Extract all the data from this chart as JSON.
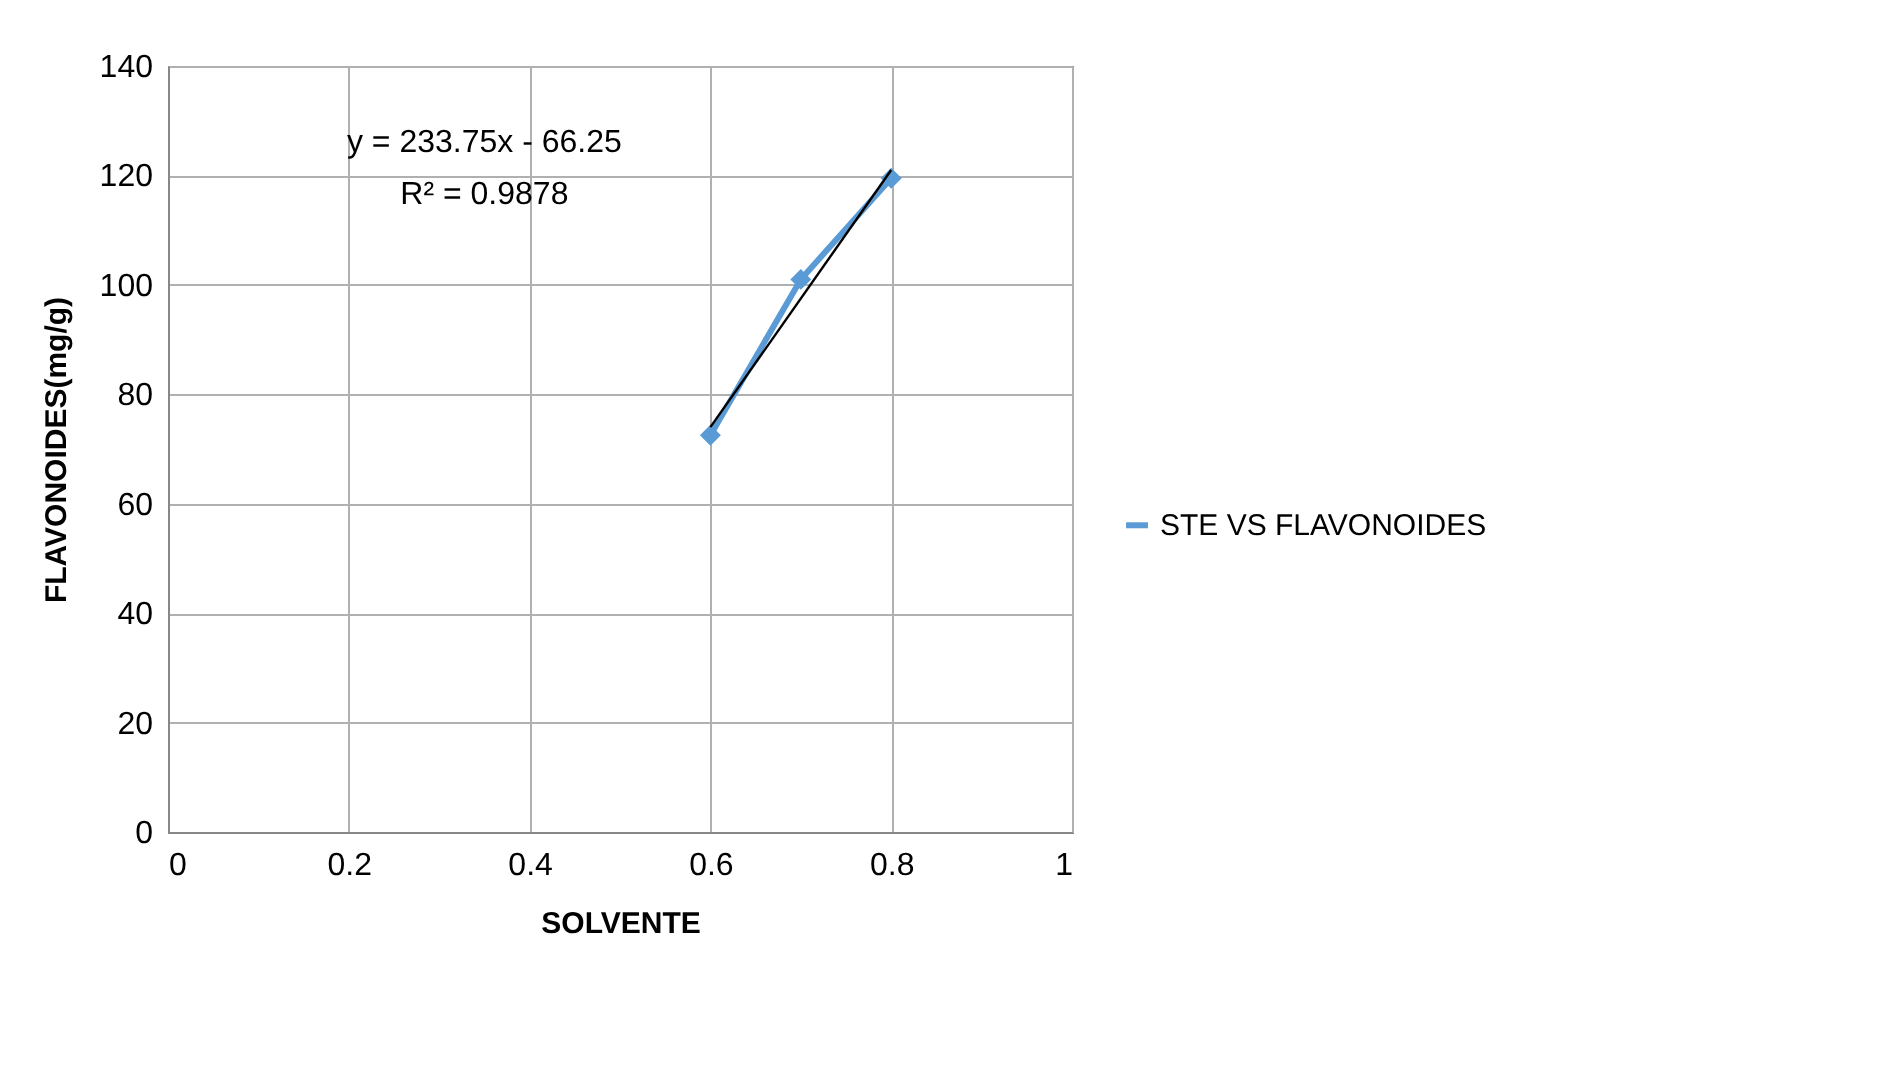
{
  "chart_data": {
    "type": "line",
    "xlabel": "SOLVENTE",
    "ylabel": "FLAVONOIDES(mg/g)",
    "series": [
      {
        "name": "STE VS FLAVONOIDES",
        "color": "#5b9bd5",
        "x": [
          0.6,
          0.7,
          0.8
        ],
        "values": [
          72.5,
          101,
          119.5
        ],
        "marker": "diamond"
      },
      {
        "type": "line",
        "color": "#000000",
        "x": [
          0.6,
          0.8
        ],
        "values": [
          74,
          121
        ],
        "marker": "none"
      }
    ],
    "annotations": [
      "y = 233.75x - 66.25",
      "R² = 0.9878"
    ],
    "xlim": [
      0,
      1
    ],
    "xticks": [
      0,
      0.2,
      0.4,
      0.6,
      0.8,
      1
    ],
    "ylim": [
      0,
      140
    ],
    "yticks": [
      0,
      20,
      40,
      60,
      80,
      100,
      120,
      140
    ],
    "grid": true,
    "legend": "right",
    "line_style": "solid"
  }
}
